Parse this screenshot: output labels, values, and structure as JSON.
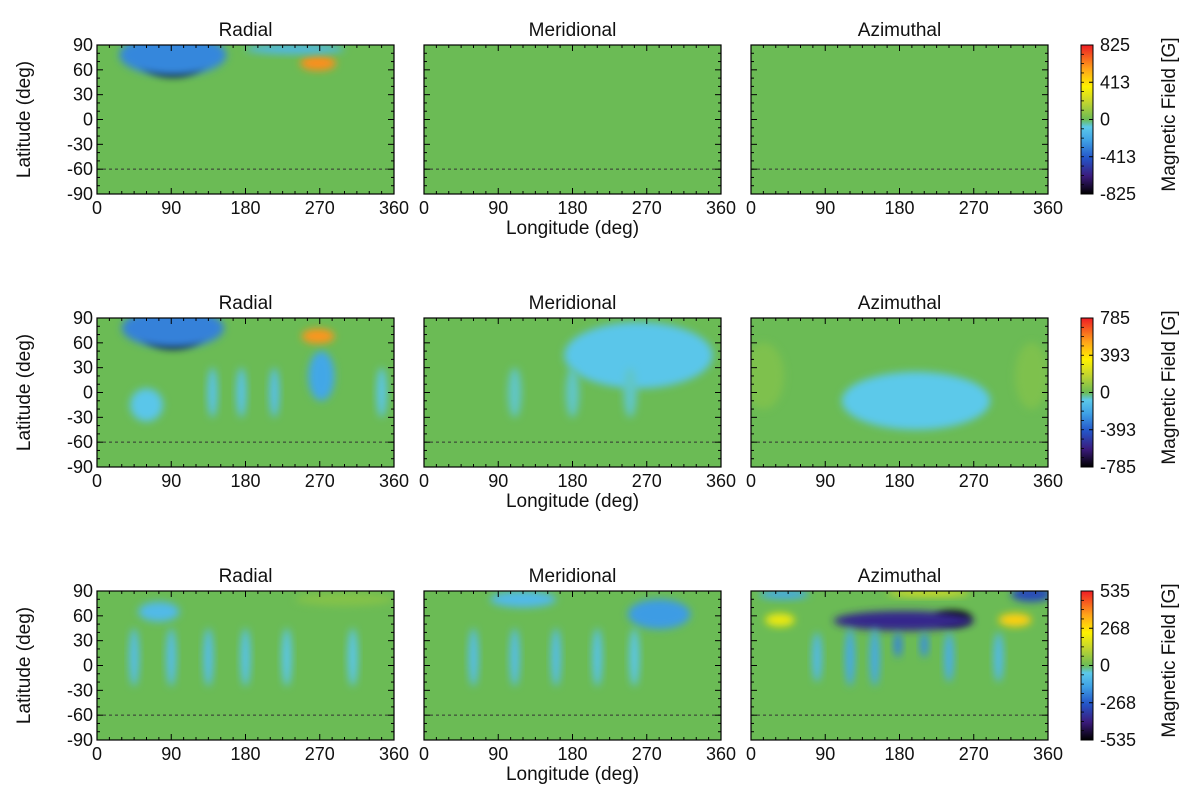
{
  "figure": {
    "ylabel": "Latitude (deg)",
    "xlabel": "Longitude (deg)",
    "colorbar_label": "Magnetic Field [G]",
    "x_ticks": [
      "0",
      "90",
      "180",
      "270",
      "360"
    ],
    "y_ticks": [
      "90",
      "60",
      "30",
      "0",
      "-30",
      "-60",
      "-90"
    ],
    "colors": {
      "background_field": "#6bbb55",
      "colormap": [
        "#000000",
        "#3b1b7c",
        "#2454c8",
        "#3fa2e6",
        "#5cc9ea",
        "#6bbb55",
        "#c5d62e",
        "#fff200",
        "#ffa31a",
        "#ee1c24"
      ]
    }
  },
  "chart_data": [
    {
      "type": "heatmap",
      "row": 1,
      "column": 1,
      "title": "Radial",
      "xlim": [
        0,
        360
      ],
      "ylim": [
        -90,
        90
      ],
      "clim": [
        -825,
        825
      ],
      "colorbar_ticks": [
        "825",
        "413",
        "0",
        "-413",
        "-825"
      ],
      "reference_line_lat": -60,
      "features": [
        {
          "lon": 92,
          "lat": 72,
          "value": -825,
          "lon_width": 38,
          "lat_width": 20
        },
        {
          "lon": 92,
          "lat": 78,
          "value": -300,
          "lon_width": 65,
          "lat_width": 25
        },
        {
          "lon": 268,
          "lat": 68,
          "value": 600,
          "lon_width": 22,
          "lat_width": 9
        },
        {
          "lon": 240,
          "lat": 85,
          "value": -150,
          "lon_width": 60,
          "lat_width": 6
        }
      ]
    },
    {
      "type": "heatmap",
      "row": 1,
      "column": 2,
      "title": "Meridional",
      "xlim": [
        0,
        360
      ],
      "ylim": [
        -90,
        90
      ],
      "clim": [
        -825,
        825
      ],
      "colorbar_ticks": [
        "825",
        "413",
        "0",
        "-413",
        "-825"
      ],
      "reference_line_lat": -60,
      "features": []
    },
    {
      "type": "heatmap",
      "row": 1,
      "column": 3,
      "title": "Azimuthal",
      "xlim": [
        0,
        360
      ],
      "ylim": [
        -90,
        90
      ],
      "clim": [
        -825,
        825
      ],
      "colorbar_ticks": [
        "825",
        "413",
        "0",
        "-413",
        "-825"
      ],
      "reference_line_lat": -60,
      "features": []
    },
    {
      "type": "heatmap",
      "row": 2,
      "column": 1,
      "title": "Radial",
      "xlim": [
        0,
        360
      ],
      "ylim": [
        -90,
        90
      ],
      "clim": [
        -785,
        785
      ],
      "colorbar_ticks": [
        "785",
        "393",
        "0",
        "-393",
        "-785"
      ],
      "reference_line_lat": -60,
      "features": [
        {
          "lon": 92,
          "lat": 72,
          "value": -785,
          "lon_width": 36,
          "lat_width": 19
        },
        {
          "lon": 92,
          "lat": 78,
          "value": -300,
          "lon_width": 62,
          "lat_width": 24
        },
        {
          "lon": 268,
          "lat": 68,
          "value": 560,
          "lon_width": 20,
          "lat_width": 9
        },
        {
          "lon": 272,
          "lat": 20,
          "value": -200,
          "lon_width": 16,
          "lat_width": 30
        },
        {
          "lon": 215,
          "lat": 0,
          "value": -110,
          "lon_width": 6,
          "lat_width": 30
        },
        {
          "lon": 175,
          "lat": 0,
          "value": -100,
          "lon_width": 6,
          "lat_width": 30
        },
        {
          "lon": 140,
          "lat": 0,
          "value": -100,
          "lon_width": 6,
          "lat_width": 30
        },
        {
          "lon": 60,
          "lat": -15,
          "value": -90,
          "lon_width": 20,
          "lat_width": 20
        },
        {
          "lon": 345,
          "lat": 0,
          "value": -90,
          "lon_width": 6,
          "lat_width": 30
        }
      ]
    },
    {
      "type": "heatmap",
      "row": 2,
      "column": 2,
      "title": "Meridional",
      "xlim": [
        0,
        360
      ],
      "ylim": [
        -90,
        90
      ],
      "clim": [
        -785,
        785
      ],
      "colorbar_ticks": [
        "785",
        "393",
        "0",
        "-393",
        "-785"
      ],
      "reference_line_lat": -60,
      "features": [
        {
          "lon": 260,
          "lat": 45,
          "value": -90,
          "lon_width": 90,
          "lat_width": 40
        },
        {
          "lon": 110,
          "lat": 0,
          "value": -60,
          "lon_width": 8,
          "lat_width": 30
        },
        {
          "lon": 180,
          "lat": 0,
          "value": -60,
          "lon_width": 8,
          "lat_width": 30
        },
        {
          "lon": 250,
          "lat": 0,
          "value": -60,
          "lon_width": 8,
          "lat_width": 30
        }
      ]
    },
    {
      "type": "heatmap",
      "row": 2,
      "column": 3,
      "title": "Azimuthal",
      "xlim": [
        0,
        360
      ],
      "ylim": [
        -90,
        90
      ],
      "clim": [
        -785,
        785
      ],
      "colorbar_ticks": [
        "785",
        "393",
        "0",
        "-393",
        "-785"
      ],
      "reference_line_lat": -60,
      "features": [
        {
          "lon": 200,
          "lat": -10,
          "value": -80,
          "lon_width": 90,
          "lat_width": 35
        },
        {
          "lon": 15,
          "lat": 20,
          "value": 40,
          "lon_width": 25,
          "lat_width": 40
        },
        {
          "lon": 340,
          "lat": 20,
          "value": 40,
          "lon_width": 20,
          "lat_width": 40
        }
      ]
    },
    {
      "type": "heatmap",
      "row": 3,
      "column": 1,
      "title": "Radial",
      "xlim": [
        0,
        360
      ],
      "ylim": [
        -90,
        90
      ],
      "clim": [
        -535,
        535
      ],
      "colorbar_ticks": [
        "535",
        "268",
        "0",
        "-268",
        "-535"
      ],
      "reference_line_lat": -60,
      "features": [
        {
          "lon": 75,
          "lat": 65,
          "value": -90,
          "lon_width": 25,
          "lat_width": 12
        },
        {
          "lon": 45,
          "lat": 10,
          "value": -80,
          "lon_width": 6,
          "lat_width": 35
        },
        {
          "lon": 90,
          "lat": 10,
          "value": -80,
          "lon_width": 6,
          "lat_width": 35
        },
        {
          "lon": 135,
          "lat": 10,
          "value": -80,
          "lon_width": 6,
          "lat_width": 35
        },
        {
          "lon": 180,
          "lat": 10,
          "value": -70,
          "lon_width": 6,
          "lat_width": 35
        },
        {
          "lon": 230,
          "lat": 10,
          "value": -60,
          "lon_width": 6,
          "lat_width": 35
        },
        {
          "lon": 310,
          "lat": 10,
          "value": -60,
          "lon_width": 6,
          "lat_width": 35
        },
        {
          "lon": 300,
          "lat": 80,
          "value": 35,
          "lon_width": 60,
          "lat_width": 8
        }
      ]
    },
    {
      "type": "heatmap",
      "row": 3,
      "column": 2,
      "title": "Meridional",
      "xlim": [
        0,
        360
      ],
      "ylim": [
        -90,
        90
      ],
      "clim": [
        -535,
        535
      ],
      "colorbar_ticks": [
        "535",
        "268",
        "0",
        "-268",
        "-535"
      ],
      "reference_line_lat": -60,
      "features": [
        {
          "lon": 285,
          "lat": 62,
          "value": -160,
          "lon_width": 38,
          "lat_width": 18
        },
        {
          "lon": 120,
          "lat": 80,
          "value": -90,
          "lon_width": 40,
          "lat_width": 10
        },
        {
          "lon": 60,
          "lat": 10,
          "value": -80,
          "lon_width": 6,
          "lat_width": 35
        },
        {
          "lon": 110,
          "lat": 10,
          "value": -80,
          "lon_width": 6,
          "lat_width": 35
        },
        {
          "lon": 160,
          "lat": 10,
          "value": -80,
          "lon_width": 6,
          "lat_width": 35
        },
        {
          "lon": 210,
          "lat": 10,
          "value": -70,
          "lon_width": 6,
          "lat_width": 35
        },
        {
          "lon": 255,
          "lat": 10,
          "value": -60,
          "lon_width": 6,
          "lat_width": 35
        }
      ]
    },
    {
      "type": "heatmap",
      "row": 3,
      "column": 3,
      "title": "Azimuthal",
      "xlim": [
        0,
        360
      ],
      "ylim": [
        -90,
        90
      ],
      "clim": [
        -535,
        535
      ],
      "colorbar_ticks": [
        "535",
        "268",
        "0",
        "-268",
        "-535"
      ],
      "reference_line_lat": -60,
      "features": [
        {
          "lon": 245,
          "lat": 57,
          "value": -535,
          "lon_width": 22,
          "lat_width": 9
        },
        {
          "lon": 185,
          "lat": 54,
          "value": -380,
          "lon_width": 85,
          "lat_width": 12
        },
        {
          "lon": 340,
          "lat": 86,
          "value": -300,
          "lon_width": 25,
          "lat_width": 9
        },
        {
          "lon": 320,
          "lat": 55,
          "value": 290,
          "lon_width": 20,
          "lat_width": 8
        },
        {
          "lon": 35,
          "lat": 55,
          "value": 200,
          "lon_width": 18,
          "lat_width": 8
        },
        {
          "lon": 215,
          "lat": 88,
          "value": 150,
          "lon_width": 50,
          "lat_width": 5
        },
        {
          "lon": 40,
          "lat": 86,
          "value": -130,
          "lon_width": 30,
          "lat_width": 6
        },
        {
          "lon": 120,
          "lat": 10,
          "value": -130,
          "lon_width": 6,
          "lat_width": 35
        },
        {
          "lon": 150,
          "lat": 10,
          "value": -130,
          "lon_width": 6,
          "lat_width": 35
        },
        {
          "lon": 178,
          "lat": 25,
          "value": -200,
          "lon_width": 5,
          "lat_width": 15
        },
        {
          "lon": 210,
          "lat": 25,
          "value": -180,
          "lon_width": 5,
          "lat_width": 15
        },
        {
          "lon": 240,
          "lat": 10,
          "value": -120,
          "lon_width": 6,
          "lat_width": 30
        },
        {
          "lon": 80,
          "lat": 10,
          "value": -90,
          "lon_width": 6,
          "lat_width": 30
        },
        {
          "lon": 300,
          "lat": 10,
          "value": -90,
          "lon_width": 6,
          "lat_width": 30
        }
      ]
    }
  ]
}
